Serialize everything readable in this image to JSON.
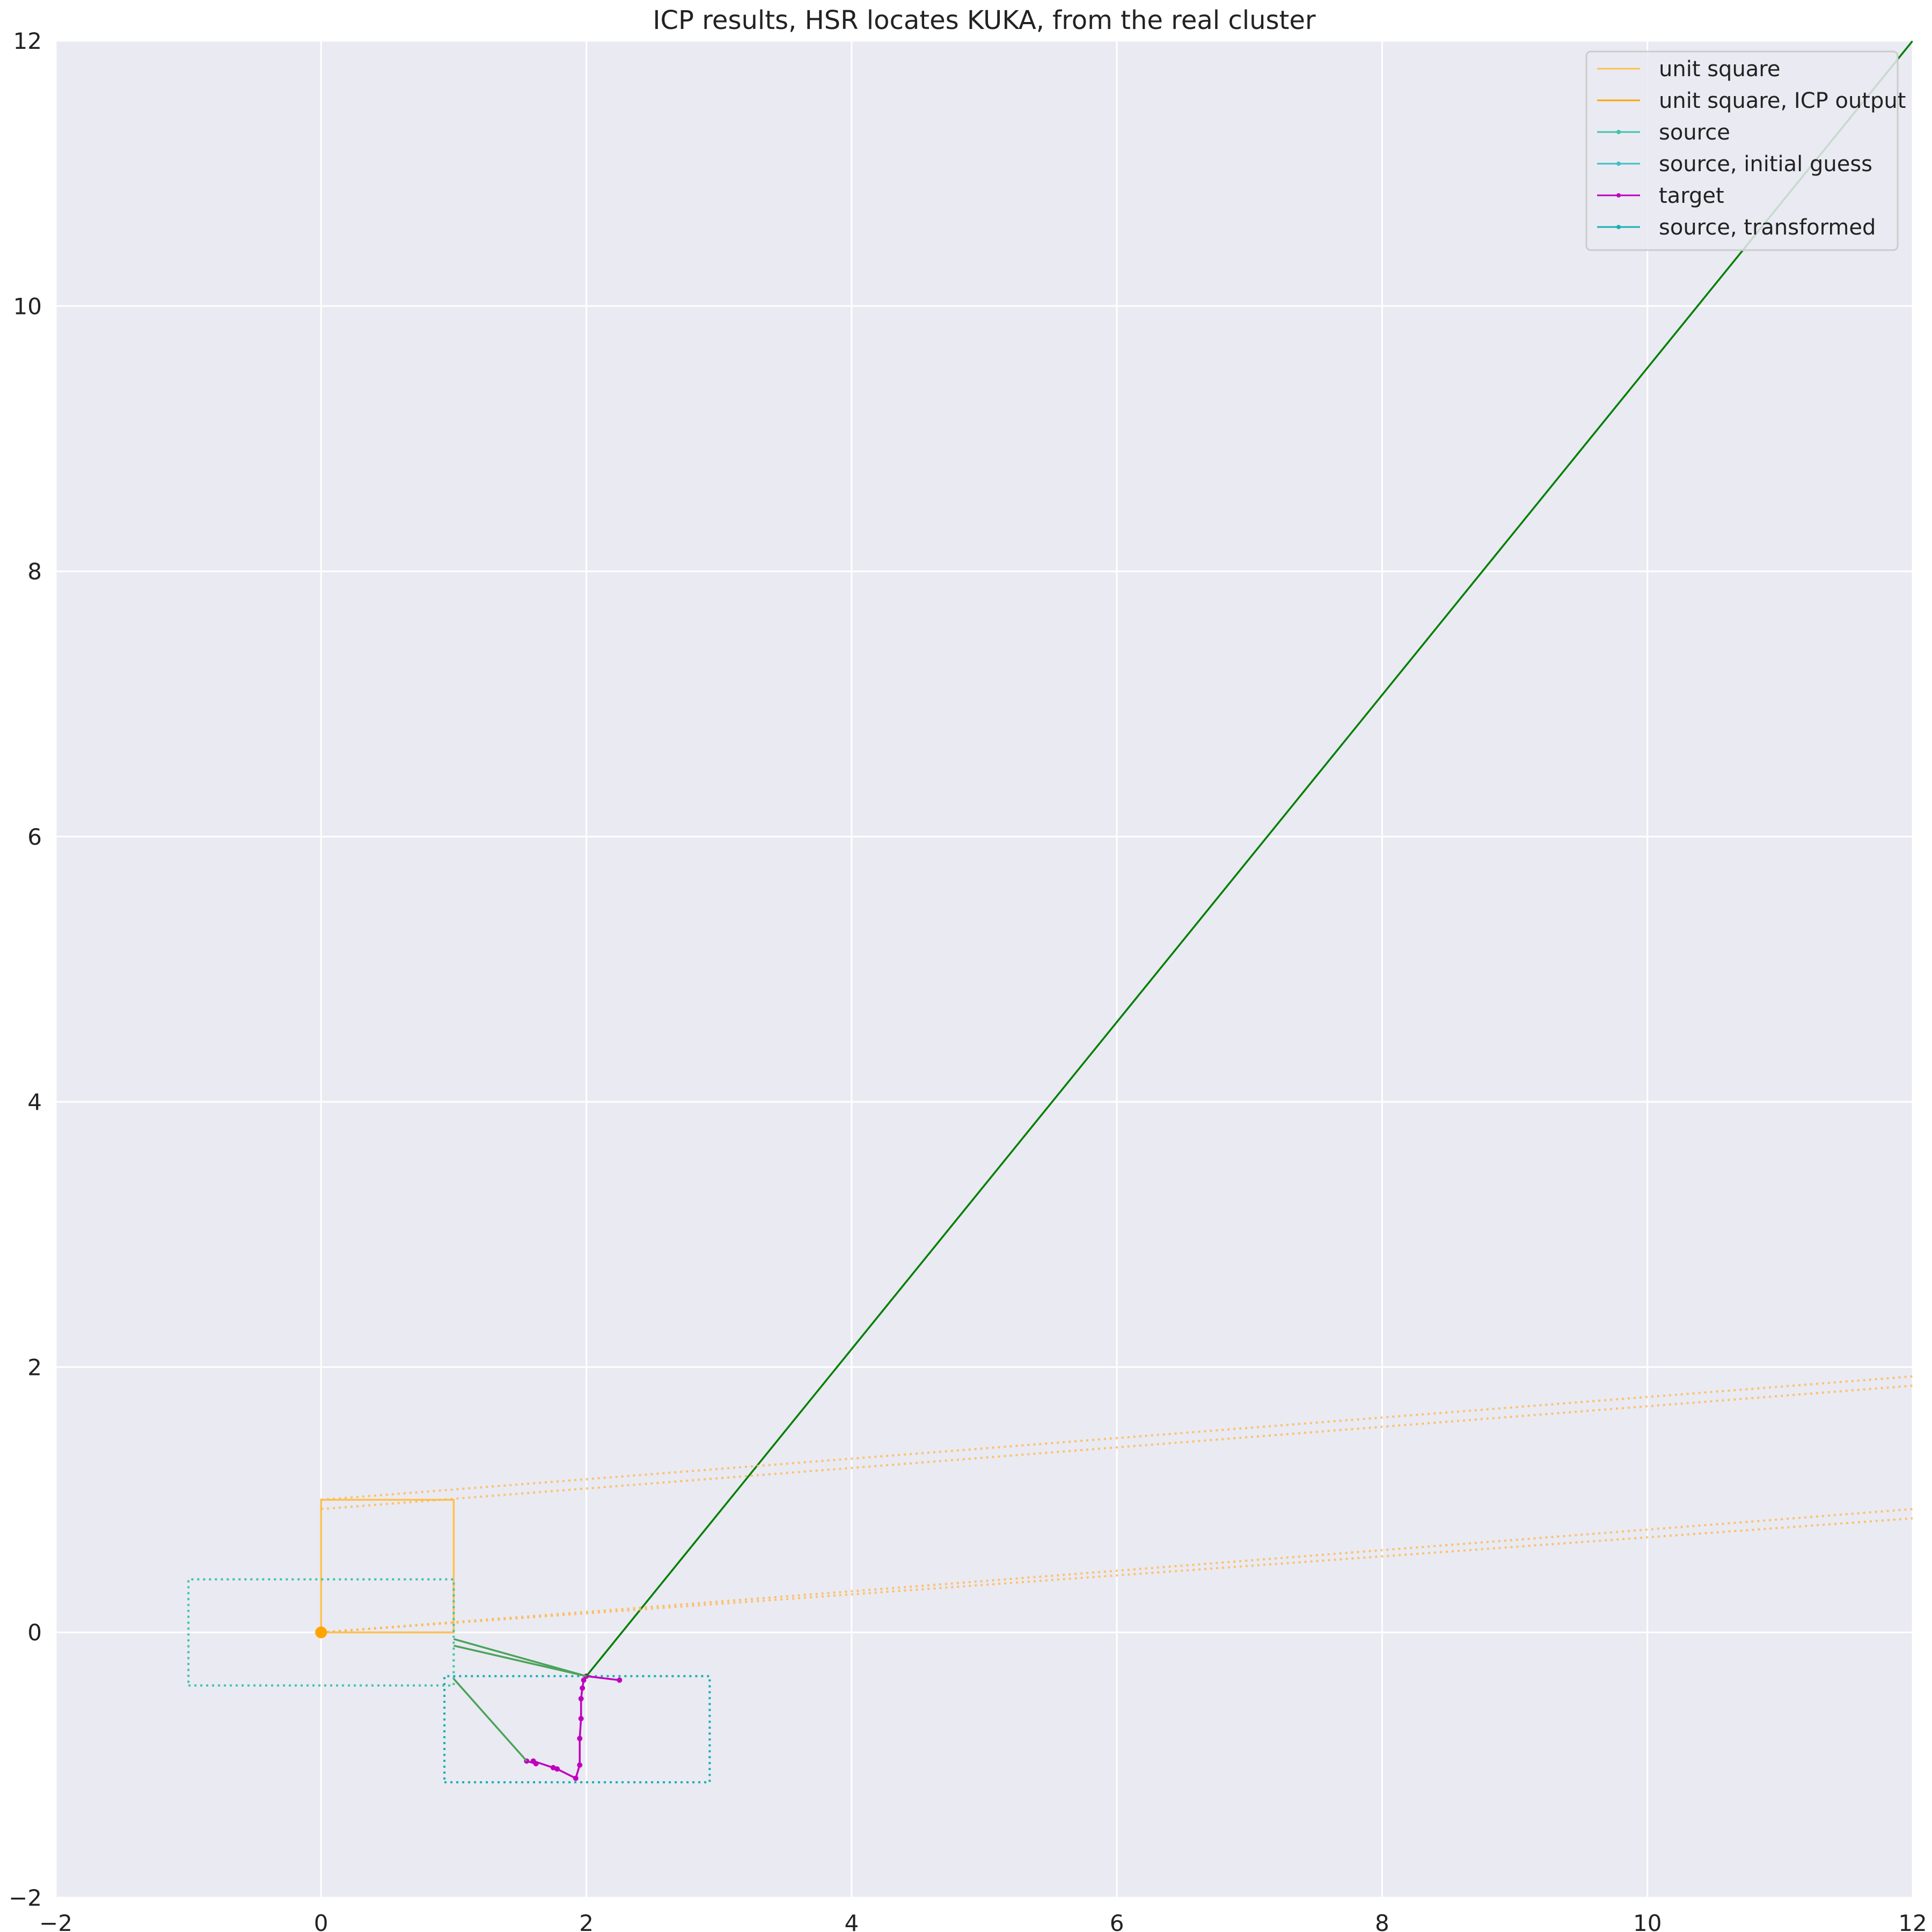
{
  "chart_data": {
    "type": "line",
    "title": "ICP results, HSR locates KUKA, from the real cluster",
    "xlabel": "",
    "ylabel": "",
    "xlim": [
      -2,
      12
    ],
    "ylim": [
      -2,
      12
    ],
    "xticks": [
      -2,
      0,
      2,
      4,
      6,
      8,
      10,
      12
    ],
    "yticks": [
      -2,
      0,
      2,
      4,
      6,
      8,
      10,
      12
    ],
    "xtick_labels": [
      "−2",
      "0",
      "2",
      "4",
      "6",
      "8",
      "10",
      "12"
    ],
    "ytick_labels": [
      "−2",
      "0",
      "2",
      "4",
      "6",
      "8",
      "10",
      "12"
    ],
    "grid": true,
    "background": "#eaeaf2",
    "legend_position": "top-right",
    "legend": [
      {
        "label": "unit square",
        "color": "#ffc04d",
        "marker": false
      },
      {
        "label": "unit square, ICP output",
        "color": "#ffa500",
        "marker": false
      },
      {
        "label": "source",
        "color": "#40c4a8",
        "marker": true
      },
      {
        "label": "source, initial guess",
        "color": "#40bfc8",
        "marker": true
      },
      {
        "label": "target",
        "color": "#bf00bf",
        "marker": true
      },
      {
        "label": "source, transformed",
        "color": "#17b0b0",
        "marker": true
      }
    ],
    "series": [
      {
        "name": "unit square",
        "color": "#ffc04d",
        "style": "solid",
        "x": [
          0,
          1,
          1,
          0,
          0
        ],
        "y": [
          0,
          0,
          1,
          1,
          0
        ]
      },
      {
        "name": "source",
        "color": "#40c4a8",
        "style": "dotted",
        "x": [
          -1,
          1,
          1,
          -1,
          -1
        ],
        "y": [
          -0.4,
          -0.4,
          0.4,
          0.4,
          -0.4
        ]
      },
      {
        "name": "source, transformed",
        "color": "#17b0b0",
        "style": "dotted",
        "x": [
          0.93,
          2.93,
          2.93,
          0.93,
          0.93
        ],
        "y": [
          -1.13,
          -1.13,
          -0.33,
          -0.33,
          -1.13
        ]
      },
      {
        "name": "target",
        "color": "#bf00bf",
        "style": "solid",
        "x": [
          1.55,
          1.62,
          1.6,
          1.75,
          1.78,
          1.92,
          1.95,
          1.95,
          1.96,
          1.96,
          1.97,
          1.98,
          2.0,
          2.25
        ],
        "y": [
          -0.97,
          -0.99,
          -0.97,
          -1.02,
          -1.03,
          -1.1,
          -1.0,
          -0.8,
          -0.65,
          -0.5,
          -0.42,
          -0.36,
          -0.33,
          -0.36
        ]
      },
      {
        "name": "",
        "color": "#008000",
        "style": "solid",
        "x": [
          2.0,
          12.0
        ],
        "y": [
          -0.33,
          12.0
        ]
      },
      {
        "name": "",
        "color": "#4aa35a",
        "style": "solid",
        "x": [
          1.0,
          2.0
        ],
        "y": [
          -0.05,
          -0.33
        ]
      },
      {
        "name": "",
        "color": "#4aa35a",
        "style": "solid",
        "x": [
          1.0,
          2.0
        ],
        "y": [
          -0.1,
          -0.33
        ]
      },
      {
        "name": "",
        "color": "#4aa35a",
        "style": "solid",
        "x": [
          1.0,
          1.55
        ],
        "y": [
          -0.35,
          -0.97
        ]
      },
      {
        "name": "",
        "color": "#ffb74d",
        "style": "dotted",
        "x": [
          0,
          12
        ],
        "y": [
          0,
          0.93
        ]
      },
      {
        "name": "",
        "color": "#ffb74d",
        "style": "dotted",
        "x": [
          0,
          12
        ],
        "y": [
          0,
          0.86
        ]
      },
      {
        "name": "",
        "color": "#ffb74d",
        "style": "dotted",
        "x": [
          0,
          12
        ],
        "y": [
          1.0,
          1.93
        ]
      },
      {
        "name": "",
        "color": "#ffb74d",
        "style": "dotted",
        "x": [
          0,
          12
        ],
        "y": [
          0.93,
          1.86
        ]
      }
    ],
    "points": [
      {
        "x": 0,
        "y": 0,
        "color": "#ffa500"
      }
    ]
  }
}
